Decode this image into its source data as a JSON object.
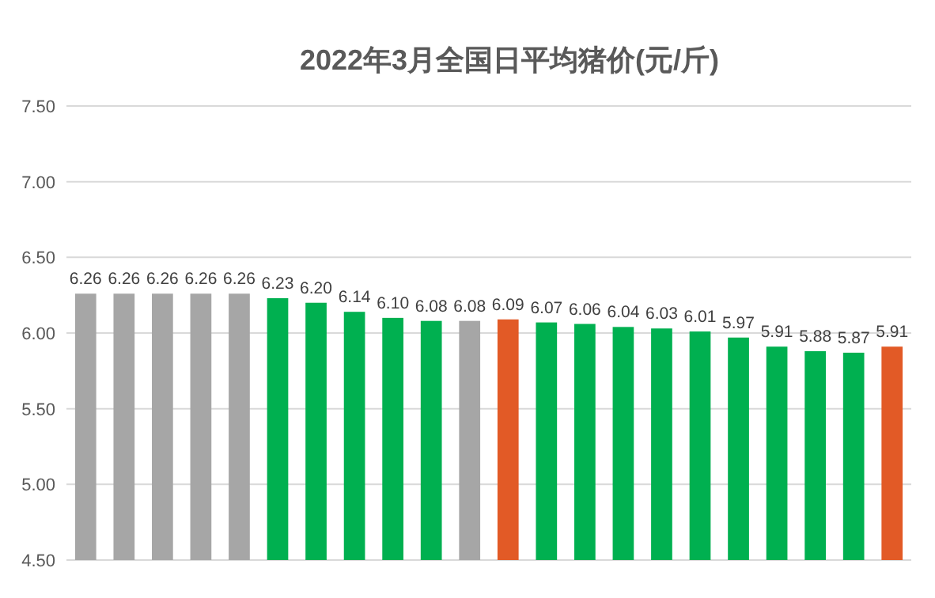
{
  "chart_data": {
    "type": "bar",
    "title": "2022年3月全国日平均猪价(元/斤)",
    "categories": [
      null,
      null,
      null,
      null,
      null,
      null,
      null,
      null,
      null,
      null,
      null,
      null,
      null,
      null,
      null,
      null,
      null,
      null,
      null,
      null,
      null,
      null
    ],
    "values": [
      6.26,
      6.26,
      6.26,
      6.26,
      6.26,
      6.23,
      6.2,
      6.14,
      6.1,
      6.08,
      6.08,
      6.09,
      6.07,
      6.06,
      6.04,
      6.03,
      6.01,
      5.97,
      5.91,
      5.88,
      5.87,
      5.91
    ],
    "value_labels": [
      "6.26",
      "6.26",
      "6.26",
      "6.26",
      "6.26",
      "6.23",
      "6.20",
      "6.14",
      "6.10",
      "6.08",
      "6.08",
      "6.09",
      "6.07",
      "6.06",
      "6.04",
      "6.03",
      "6.01",
      "5.97",
      "5.91",
      "5.88",
      "5.87",
      "5.91"
    ],
    "colors": [
      "#a6a6a6",
      "#a6a6a6",
      "#a6a6a6",
      "#a6a6a6",
      "#a6a6a6",
      "#00b050",
      "#00b050",
      "#00b050",
      "#00b050",
      "#00b050",
      "#a6a6a6",
      "#e25a26",
      "#00b050",
      "#00b050",
      "#00b050",
      "#00b050",
      "#00b050",
      "#00b050",
      "#00b050",
      "#00b050",
      "#00b050",
      "#e25a26"
    ],
    "ylim": [
      4.5,
      7.5
    ],
    "yticks": [
      {
        "value": 4.5,
        "label": "4.50"
      },
      {
        "value": 5.0,
        "label": "5.00"
      },
      {
        "value": 5.5,
        "label": "5.50"
      },
      {
        "value": 6.0,
        "label": "6.00"
      },
      {
        "value": 6.5,
        "label": "6.50"
      },
      {
        "value": 7.0,
        "label": "7.00"
      },
      {
        "value": 7.5,
        "label": "7.50"
      }
    ],
    "grid": "y",
    "tick_labels": "y"
  }
}
